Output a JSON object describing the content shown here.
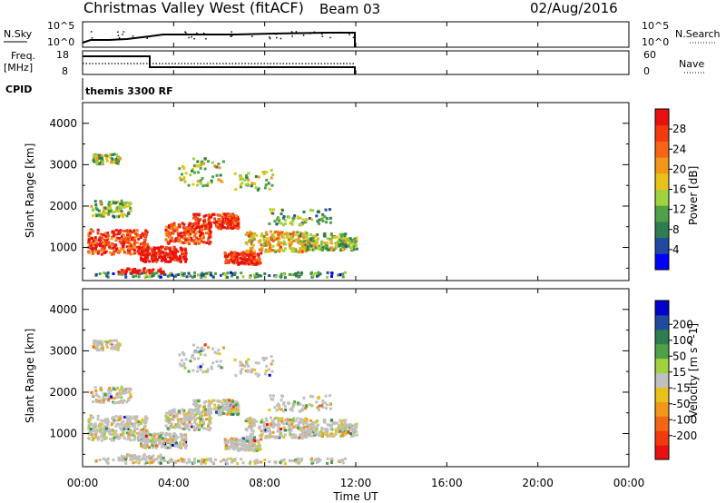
{
  "header": {
    "station": "Christmas Valley West (fitACF)",
    "beam": "Beam 03",
    "date": "02/Aug/2016"
  },
  "panels": {
    "nsky_label": "N.Sky",
    "nsky_ticks": [
      "10^5",
      "10^0"
    ],
    "nsearch_label": "N.Search",
    "freq_label_1": "Freq.",
    "freq_label_2": "[MHz]",
    "freq_ticks": [
      "18",
      "8"
    ],
    "nave_label": "Nave",
    "nave_ticks": [
      "60",
      "0"
    ],
    "cpid_label": "CPID",
    "cpid_value": "themis 3300 RF"
  },
  "colors": {
    "power_scale": [
      "#0000ff",
      "#1f4aa0",
      "#2e7d4f",
      "#4fa048",
      "#9fd23c",
      "#e8c21a",
      "#f29718",
      "#f46515",
      "#f33a0f",
      "#e81010"
    ],
    "velocity_scale": [
      "#e81010",
      "#f33a0f",
      "#f46515",
      "#f29718",
      "#e8c21a",
      "#c0c0c0",
      "#9fd23c",
      "#4fa048",
      "#2e7d4f",
      "#1f4aa0",
      "#0000cc"
    ],
    "ground_scatter": "#c0c0c0"
  },
  "chart_data": [
    {
      "type": "heatmap",
      "name": "power",
      "ylabel": "Slant Range [km]",
      "ylim": [
        200,
        4500
      ],
      "yticks": [
        1000,
        2000,
        3000,
        4000
      ],
      "xlim_hours": [
        0,
        24
      ],
      "colorbar_label": "Power [dB]",
      "colorbar_ticks": [
        "4",
        "8",
        "12",
        "16",
        "20",
        "24",
        "28"
      ],
      "colorbar_range": [
        0,
        32
      ],
      "data_end_hour": 12.0
    },
    {
      "type": "heatmap",
      "name": "velocity",
      "ylabel": "Slant Range [km]",
      "ylim": [
        200,
        4500
      ],
      "yticks": [
        1000,
        2000,
        3000,
        4000
      ],
      "xlim_hours": [
        0,
        24
      ],
      "colorbar_label": "Velocity [m s^-1]",
      "colorbar_ticks": [
        "-200",
        "-100",
        "-50",
        "-15",
        "15",
        "50",
        "100",
        "200"
      ],
      "data_end_hour": 12.0
    }
  ],
  "xaxis": {
    "ticks": [
      "00:00",
      "04:00",
      "08:00",
      "12:00",
      "16:00",
      "20:00",
      "00:00"
    ],
    "label": "Time UT"
  }
}
